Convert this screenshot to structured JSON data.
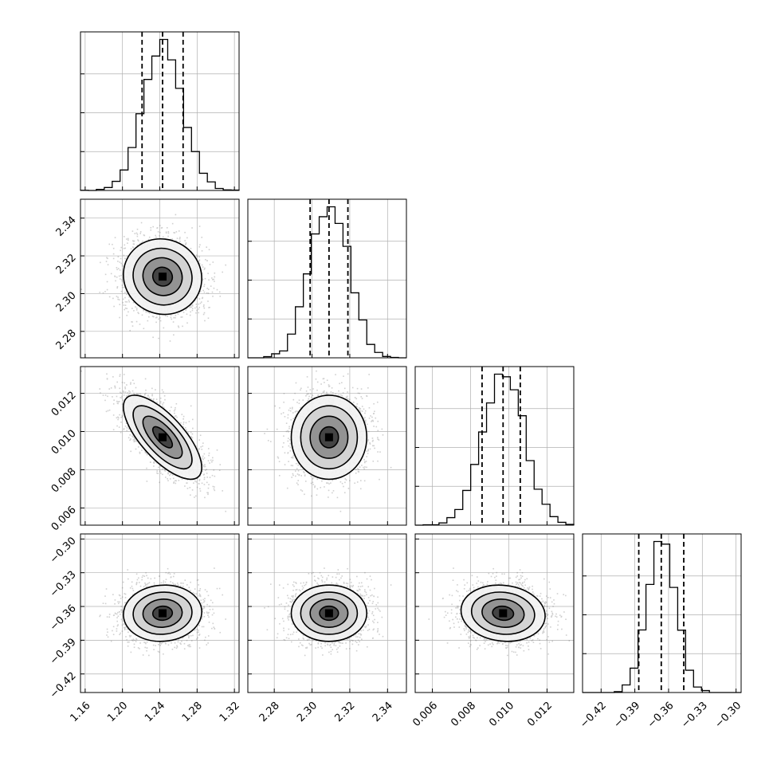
{
  "chart_data": {
    "type": "corner",
    "title": "",
    "grid": true,
    "parameters": [
      {
        "xlabel": "",
        "range": [
          1.155,
          1.325
        ],
        "ticks": [
          1.16,
          1.2,
          1.24,
          1.28,
          1.32
        ],
        "tick_labels": [
          "1.16",
          "1.20",
          "1.24",
          "1.28",
          "1.32"
        ],
        "mean": 1.243,
        "sd": 0.021,
        "quantiles": [
          1.221,
          1.243,
          1.265
        ]
      },
      {
        "xlabel": "",
        "range": [
          2.266,
          2.35
        ],
        "ticks": [
          2.28,
          2.3,
          2.32,
          2.34
        ],
        "tick_labels": [
          "2.28",
          "2.30",
          "2.32",
          "2.34"
        ],
        "mean": 2.309,
        "sd": 0.01,
        "quantiles": [
          2.299,
          2.309,
          2.319
        ]
      },
      {
        "xlabel": "",
        "range": [
          0.0051,
          0.0134
        ],
        "ticks": [
          0.006,
          0.008,
          0.01,
          0.012
        ],
        "tick_labels": [
          "0.006",
          "0.008",
          "0.010",
          "0.012"
        ],
        "mean": 0.0097,
        "sd": 0.0011,
        "quantiles": [
          0.0086,
          0.0097,
          0.0106
        ]
      },
      {
        "xlabel": "",
        "range": [
          -0.4365,
          -0.2955
        ],
        "ticks": [
          -0.42,
          -0.39,
          -0.36,
          -0.33,
          -0.3
        ],
        "tick_labels": [
          "−0.42",
          "−0.39",
          "−0.36",
          "−0.33",
          "−0.30"
        ],
        "mean": -0.366,
        "sd": 0.0125,
        "quantiles": [
          -0.3865,
          -0.3665,
          -0.3465
        ]
      }
    ],
    "correlations": [
      {
        "pair": [
          0,
          1
        ],
        "r": -0.05
      },
      {
        "pair": [
          0,
          2
        ],
        "r": -0.72
      },
      {
        "pair": [
          0,
          3
        ],
        "r": 0.05
      },
      {
        "pair": [
          1,
          2
        ],
        "r": 0.0
      },
      {
        "pair": [
          1,
          3
        ],
        "r": 0.0
      },
      {
        "pair": [
          2,
          3
        ],
        "r": -0.1
      }
    ],
    "histogram_bins": 20,
    "contour_levels_sigma": [
      0.5,
      1.0,
      1.5,
      2.0
    ],
    "colors": {
      "samples": "#7a7a7a",
      "lines": "#000000",
      "grid": "#b0b0b0"
    }
  }
}
